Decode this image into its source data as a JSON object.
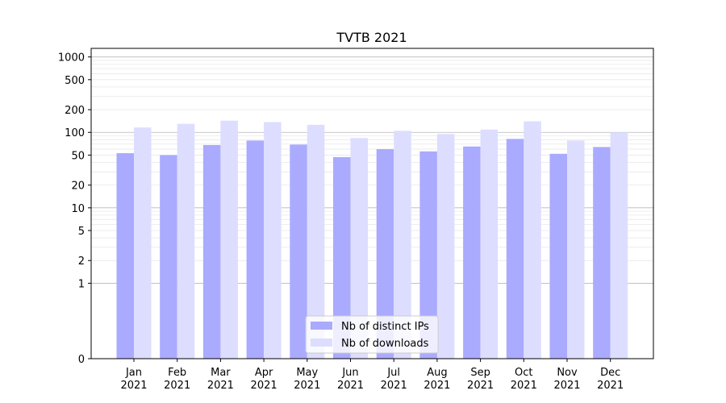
{
  "chart_data": {
    "type": "bar",
    "title": "TVTB 2021",
    "xlabel": "",
    "ylabel": "",
    "y_scale": "symlog",
    "ylim": [
      0,
      1300
    ],
    "y_ticks": [
      0,
      1,
      2,
      5,
      10,
      20,
      50,
      100,
      200,
      500,
      1000
    ],
    "y_tick_labels": [
      "0",
      "1",
      "2",
      "5",
      "10",
      "20",
      "50",
      "100",
      "200",
      "500",
      "1000"
    ],
    "categories": [
      "Jan\n2021",
      "Feb\n2021",
      "Mar\n2021",
      "Apr\n2021",
      "May\n2021",
      "Jun\n2021",
      "Jul\n2021",
      "Aug\n2021",
      "Sep\n2021",
      "Oct\n2021",
      "Nov\n2021",
      "Dec\n2021"
    ],
    "series": [
      {
        "name": "Nb of distinct IPs",
        "color": "#aaaaff",
        "values": [
          53,
          50,
          68,
          78,
          69,
          47,
          60,
          56,
          65,
          82,
          52,
          64
        ]
      },
      {
        "name": "Nb of downloads",
        "color": "#ddddff",
        "values": [
          116,
          130,
          143,
          137,
          126,
          84,
          105,
          95,
          109,
          140,
          78,
          100
        ]
      }
    ],
    "grid": true,
    "legend_position": "lower center"
  }
}
